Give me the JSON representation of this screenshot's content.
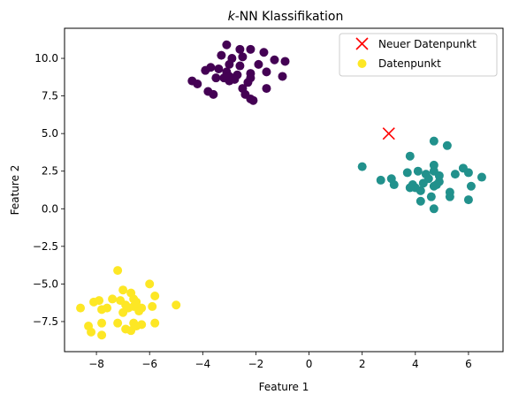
{
  "chart_data": {
    "type": "scatter",
    "title_prefix": "k",
    "title_rest": "-NN Klassifikation",
    "xlabel": "Feature 1",
    "ylabel": "Feature 2",
    "xlim": [
      -9.2,
      7.3
    ],
    "ylim": [
      -9.5,
      12.0
    ],
    "xticks": [
      -8,
      -6,
      -4,
      -2,
      0,
      2,
      4,
      6
    ],
    "xtick_labels": [
      "−8",
      "−6",
      "−4",
      "−2",
      "0",
      "2",
      "4",
      "6"
    ],
    "yticks": [
      -7.5,
      -5.0,
      -2.5,
      0.0,
      2.5,
      5.0,
      7.5,
      10.0
    ],
    "ytick_labels": [
      "−7.5",
      "−5.0",
      "−2.5",
      "0.0",
      "2.5",
      "5.0",
      "7.5",
      "10.0"
    ],
    "grid": false,
    "legend_position": "top-right",
    "legend": [
      {
        "label": "Neuer Datenpunkt",
        "marker": "x",
        "color": "#ff0000"
      },
      {
        "label": "Datenpunkt",
        "marker": "circle",
        "color": "#fde725"
      }
    ],
    "new_point": {
      "x": 3.0,
      "y": 5.0,
      "color": "#ff0000"
    },
    "clusters": [
      {
        "class": 0,
        "color": "#440154",
        "points": [
          [
            -3.1,
            10.9
          ],
          [
            -2.6,
            10.6
          ],
          [
            -2.2,
            10.6
          ],
          [
            -1.7,
            10.4
          ],
          [
            -3.3,
            10.2
          ],
          [
            -2.9,
            10.0
          ],
          [
            -2.5,
            10.1
          ],
          [
            -1.3,
            9.9
          ],
          [
            -0.9,
            9.8
          ],
          [
            -3.7,
            9.4
          ],
          [
            -3.4,
            9.3
          ],
          [
            -3.0,
            9.6
          ],
          [
            -2.6,
            9.5
          ],
          [
            -1.9,
            9.6
          ],
          [
            -3.9,
            9.2
          ],
          [
            -3.1,
            9.1
          ],
          [
            -2.2,
            9.0
          ],
          [
            -1.6,
            9.1
          ],
          [
            -3.5,
            8.7
          ],
          [
            -3.2,
            8.7
          ],
          [
            -2.7,
            8.9
          ],
          [
            -3.0,
            8.5
          ],
          [
            -2.2,
            8.7
          ],
          [
            -1.0,
            8.8
          ],
          [
            -4.4,
            8.5
          ],
          [
            -4.2,
            8.3
          ],
          [
            -2.8,
            8.6
          ],
          [
            -2.3,
            8.4
          ],
          [
            -3.8,
            7.8
          ],
          [
            -3.6,
            7.6
          ],
          [
            -2.5,
            8.0
          ],
          [
            -1.6,
            8.0
          ],
          [
            -2.4,
            7.6
          ],
          [
            -2.2,
            7.3
          ],
          [
            -2.1,
            7.2
          ],
          [
            -3.0,
            8.8
          ]
        ]
      },
      {
        "class": 1,
        "color": "#21918c",
        "points": [
          [
            4.7,
            4.5
          ],
          [
            5.2,
            4.2
          ],
          [
            3.8,
            3.5
          ],
          [
            2.0,
            2.8
          ],
          [
            4.7,
            2.9
          ],
          [
            5.8,
            2.7
          ],
          [
            4.1,
            2.5
          ],
          [
            4.7,
            2.5
          ],
          [
            3.7,
            2.4
          ],
          [
            4.4,
            2.3
          ],
          [
            5.5,
            2.3
          ],
          [
            6.0,
            2.4
          ],
          [
            6.5,
            2.1
          ],
          [
            2.7,
            1.9
          ],
          [
            3.1,
            2.0
          ],
          [
            4.9,
            2.2
          ],
          [
            4.5,
            2.0
          ],
          [
            4.9,
            1.8
          ],
          [
            3.2,
            1.6
          ],
          [
            3.9,
            1.6
          ],
          [
            4.3,
            1.7
          ],
          [
            4.7,
            1.5
          ],
          [
            6.1,
            1.5
          ],
          [
            4.0,
            1.4
          ],
          [
            3.8,
            1.4
          ],
          [
            4.2,
            1.2
          ],
          [
            5.3,
            1.1
          ],
          [
            4.6,
            0.8
          ],
          [
            5.3,
            0.8
          ],
          [
            4.2,
            0.5
          ],
          [
            6.0,
            0.6
          ],
          [
            4.7,
            0.0
          ],
          [
            4.8,
            1.6
          ]
        ]
      },
      {
        "class": 2,
        "color": "#fde725",
        "points": [
          [
            -7.2,
            -4.1
          ],
          [
            -6.0,
            -5.0
          ],
          [
            -7.0,
            -5.4
          ],
          [
            -6.7,
            -5.6
          ],
          [
            -5.8,
            -5.8
          ],
          [
            -7.4,
            -6.0
          ],
          [
            -7.1,
            -6.1
          ],
          [
            -6.6,
            -6.0
          ],
          [
            -8.1,
            -6.2
          ],
          [
            -7.9,
            -6.1
          ],
          [
            -6.9,
            -6.4
          ],
          [
            -6.5,
            -6.2
          ],
          [
            -6.3,
            -6.6
          ],
          [
            -8.6,
            -6.6
          ],
          [
            -7.8,
            -6.7
          ],
          [
            -7.6,
            -6.6
          ],
          [
            -6.8,
            -6.6
          ],
          [
            -6.6,
            -6.5
          ],
          [
            -5.9,
            -6.5
          ],
          [
            -5.0,
            -6.4
          ],
          [
            -7.0,
            -6.9
          ],
          [
            -6.4,
            -6.8
          ],
          [
            -8.3,
            -7.8
          ],
          [
            -7.8,
            -7.6
          ],
          [
            -7.2,
            -7.6
          ],
          [
            -6.6,
            -7.6
          ],
          [
            -5.8,
            -7.6
          ],
          [
            -6.3,
            -7.7
          ],
          [
            -8.2,
            -8.2
          ],
          [
            -7.8,
            -8.4
          ],
          [
            -6.9,
            -8.0
          ],
          [
            -6.7,
            -8.1
          ],
          [
            -6.5,
            -7.8
          ]
        ]
      }
    ]
  }
}
